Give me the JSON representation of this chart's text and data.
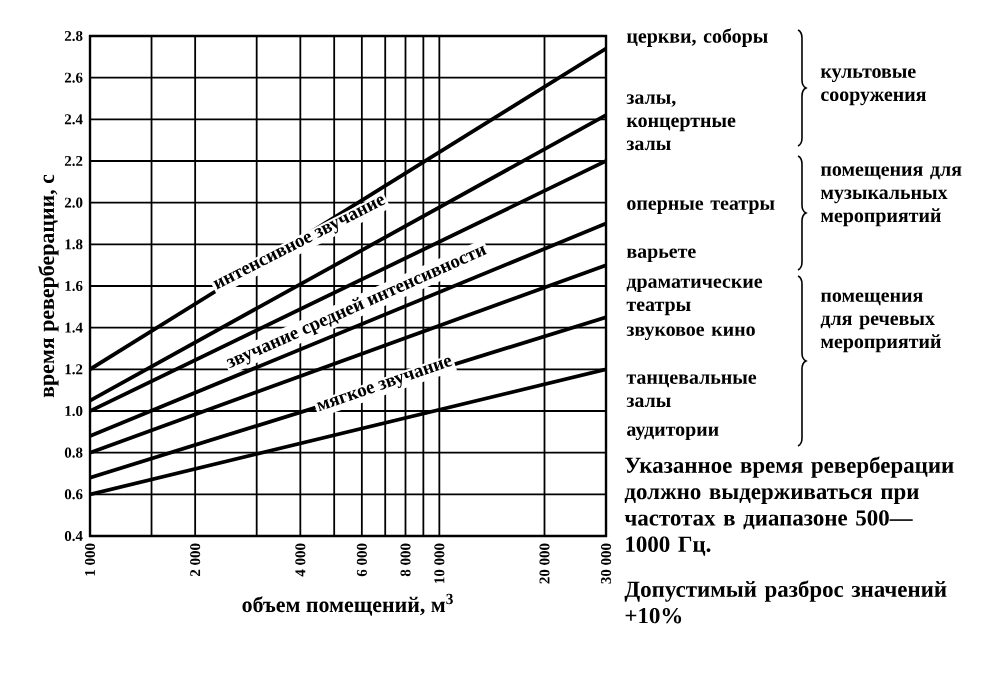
{
  "chart_data": {
    "type": "line",
    "xlabel": "объем помещений, м$^{3}$",
    "ylabel": "время реверберации, с",
    "log": "x",
    "grid": true,
    "marker": "none",
    "line_style": "solid",
    "xlim": [
      1000,
      30000
    ],
    "ylim": [
      0.4,
      2.8
    ],
    "xticks": [
      {
        "value": 1000,
        "label": "1 000"
      },
      {
        "value": 1500,
        "label": null
      },
      {
        "value": 2000,
        "label": "2 000"
      },
      {
        "value": 3000,
        "label": null
      },
      {
        "value": 4000,
        "label": "4 000"
      },
      {
        "value": 5000,
        "label": null
      },
      {
        "value": 6000,
        "label": "6 000"
      },
      {
        "value": 7000,
        "label": null
      },
      {
        "value": 8000,
        "label": "8 000"
      },
      {
        "value": 9000,
        "label": null
      },
      {
        "value": 10000,
        "label": "10 000"
      },
      {
        "value": 20000,
        "label": "20 000"
      },
      {
        "value": 30000,
        "label": "30 000"
      }
    ],
    "yticks": [
      0.4,
      0.6,
      0.8,
      {
        "value": 1.0,
        "label": "1.0"
      },
      1.2,
      1.4,
      1.6,
      1.8,
      {
        "value": 2.0,
        "label": "2.0"
      },
      2.2,
      2.4,
      2.6,
      2.8
    ],
    "x": [
      1000,
      30000
    ],
    "series": [
      {
        "color": "#000000",
        "values": [
          1.2,
          2.74
        ]
      },
      {
        "color": "#000000",
        "values": [
          1.05,
          2.42
        ]
      },
      {
        "color": "#000000",
        "values": [
          1.0,
          2.2
        ]
      },
      {
        "color": "#000000",
        "values": [
          0.88,
          1.9
        ]
      },
      {
        "color": "#000000",
        "values": [
          0.8,
          1.7
        ]
      },
      {
        "color": "#000000",
        "values": [
          0.68,
          1.45
        ]
      },
      {
        "color": "#000000",
        "values": [
          0.6,
          1.2
        ]
      }
    ],
    "annotations": [
      "интенсивное звучание",
      "звучание средней интенсивности",
      "мягкое звучание",
      "церкви, соборы",
      "залы, концертные залы",
      "оперные театры",
      "варьете",
      "драматические театры",
      "звуковое кино",
      "танцевальные залы",
      "аудитории",
      "культовые сооружения",
      "помещения для музыкальных мероприятий",
      "помещения для речевых мероприятий",
      "Указанное время реверберации должно выдерживаться при частотах в диапазоне 500—1000 Гц.",
      "Допустимый разброс значений +10%"
    ]
  }
}
